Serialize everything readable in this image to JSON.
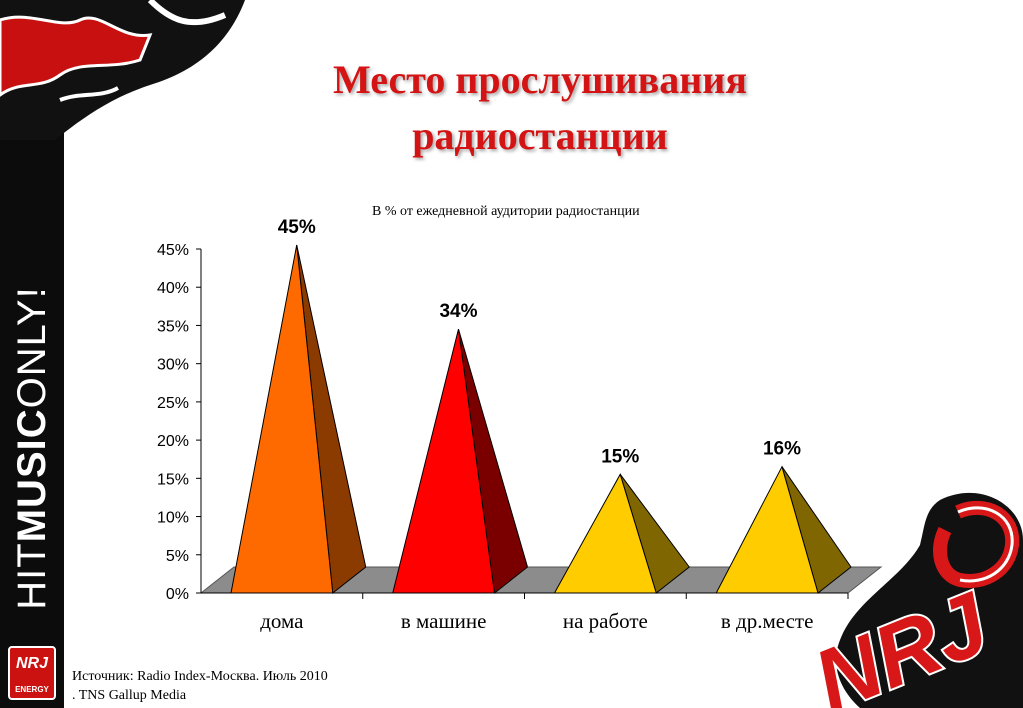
{
  "slide": {
    "title_line1": "Место прослушивания",
    "title_line2": "радиостанции",
    "subtitle": "В % от ежедневной  аудитории радиостанции",
    "source_line1": "Источник: Radio Index-Москва. Июль 2010",
    "source_line2": ". TNS Gallup Media"
  },
  "branding": {
    "vertical_text_part1": "HIT",
    "vertical_text_part2": "MUSIC",
    "vertical_text_part3": "ONLY!",
    "logo_text": "NRJ",
    "small_logo_text": "NRJ",
    "small_logo_sub": "ENERGY"
  },
  "chart_data": {
    "type": "bar",
    "shape": "3d-pyramid",
    "categories": [
      "дома",
      "в машине",
      "на работе",
      "в др.месте"
    ],
    "values": [
      45,
      34,
      15,
      16
    ],
    "data_labels": [
      "45%",
      "34%",
      "15%",
      "16%"
    ],
    "y_ticks": [
      "0%",
      "5%",
      "10%",
      "15%",
      "20%",
      "25%",
      "30%",
      "35%",
      "40%",
      "45%"
    ],
    "ylim": [
      0,
      45
    ],
    "colors": {
      "дома": {
        "front": "#FF6A00",
        "side": "#8B3A00"
      },
      "в машине": {
        "front": "#FF0000",
        "side": "#7A0000"
      },
      "на работе": {
        "front": "#FFCC00",
        "side": "#7F6600"
      },
      "в др.месте": {
        "front": "#FFCC00",
        "side": "#7F6600"
      }
    },
    "floor_color": "#8C8C8C",
    "legend": "none",
    "grid": false
  }
}
